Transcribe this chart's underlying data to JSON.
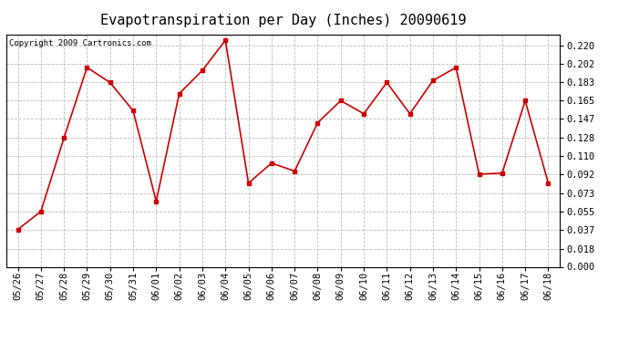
{
  "title": "Evapotranspiration per Day (Inches) 20090619",
  "copyright_text": "Copyright 2009 Cartronics.com",
  "x_labels": [
    "05/26",
    "05/27",
    "05/28",
    "05/29",
    "05/30",
    "05/31",
    "06/01",
    "06/02",
    "06/03",
    "06/04",
    "06/05",
    "06/06",
    "06/07",
    "06/08",
    "06/09",
    "06/10",
    "06/11",
    "06/12",
    "06/13",
    "06/14",
    "06/15",
    "06/16",
    "06/17",
    "06/18"
  ],
  "y_values": [
    0.037,
    0.055,
    0.128,
    0.198,
    0.183,
    0.155,
    0.065,
    0.172,
    0.195,
    0.225,
    0.083,
    0.103,
    0.095,
    0.143,
    0.165,
    0.152,
    0.183,
    0.152,
    0.185,
    0.198,
    0.092,
    0.093,
    0.165,
    0.083
  ],
  "line_color": "#cc0000",
  "marker": "s",
  "marker_size": 2.5,
  "line_width": 1.2,
  "ylim": [
    0.0,
    0.231
  ],
  "yticks": [
    0.0,
    0.018,
    0.037,
    0.055,
    0.073,
    0.092,
    0.11,
    0.128,
    0.147,
    0.165,
    0.183,
    0.202,
    0.22
  ],
  "bg_color": "#ffffff",
  "grid_color": "#bbbbbb",
  "title_fontsize": 11,
  "copyright_fontsize": 6.5,
  "tick_fontsize": 7.5
}
